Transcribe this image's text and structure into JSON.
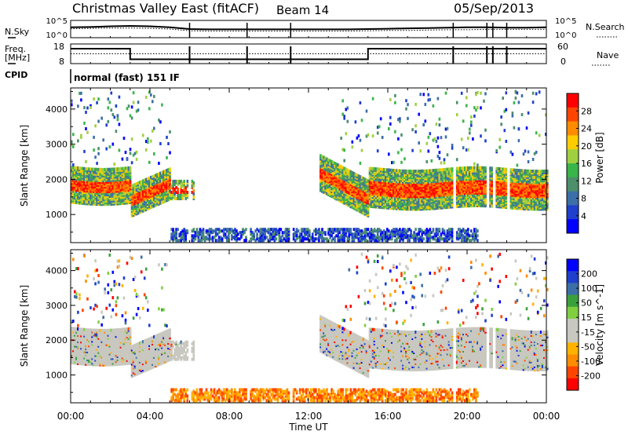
{
  "header": {
    "station": "Christmas Valley East (fitACF)",
    "beam": "Beam 14",
    "date": "05/Sep/2013"
  },
  "noise_panel": {
    "left_label": "N.Sky",
    "left_ticks": [
      "10^5",
      "10^0"
    ],
    "right_ticks": [
      "10^5",
      "10^0"
    ],
    "right_label": "N.Search"
  },
  "freq_panel": {
    "left_label_line1": "Freq.",
    "left_label_line2": "[MHz]",
    "left_ticks": [
      "18",
      "8"
    ],
    "right_ticks": [
      "60",
      "0"
    ],
    "right_label": "Nave"
  },
  "cpid": {
    "label": "CPID",
    "mode": "normal (fast) 151 IF"
  },
  "colors": {
    "power_scale": [
      "#0000ff",
      "#1f3fcc",
      "#3c6fa8",
      "#4c8f6a",
      "#39b54a",
      "#a0d040",
      "#ffcc00",
      "#ff8c00",
      "#ff4400",
      "#ff0000"
    ],
    "velocity_scale": [
      "#ff0000",
      "#ff4400",
      "#ff8c00",
      "#ffb300",
      "#c8c8c0",
      "#c8c8c0",
      "#7fcf3f",
      "#39a03c",
      "#3c6fa8",
      "#1f3fcc",
      "#0000ff"
    ]
  },
  "chart_data": [
    {
      "type": "line",
      "name": "noise",
      "x_range": [
        0,
        24
      ],
      "ylim_log10": [
        0,
        5
      ],
      "x_hours": [
        0,
        1,
        2,
        3,
        4,
        5,
        6,
        7,
        8,
        9,
        10,
        11,
        12,
        13,
        14,
        15,
        16,
        17,
        18,
        19,
        20,
        21,
        22,
        23,
        24
      ],
      "sky_log10": [
        3.0,
        3.1,
        3.3,
        3.4,
        3.3,
        3.0,
        2.5,
        2.4,
        2.4,
        2.4,
        2.4,
        2.4,
        2.4,
        2.4,
        2.4,
        2.5,
        2.6,
        2.7,
        2.8,
        2.9,
        3.0,
        3.0,
        2.9,
        2.9,
        3.0
      ],
      "search_log10": [
        2.6,
        2.7,
        2.8,
        2.8,
        2.7,
        2.5,
        2.0,
        1.9,
        1.9,
        1.9,
        1.9,
        1.9,
        1.9,
        1.9,
        1.9,
        2.0,
        2.1,
        2.1,
        2.2,
        2.3,
        2.3,
        2.4,
        2.4,
        2.4,
        2.4
      ]
    },
    {
      "type": "line",
      "name": "frequency",
      "x_range": [
        0,
        24
      ],
      "ylim": [
        8,
        18
      ],
      "ylim_right": [
        0,
        60
      ],
      "freq_steps": [
        [
          0,
          3,
          15.6
        ],
        [
          3,
          15,
          10.2
        ],
        [
          15,
          24,
          15.6
        ]
      ],
      "nave_value": 30,
      "gap_hours": [
        6.0,
        8.9,
        11.1,
        19.3,
        21.0,
        21.3,
        22.0
      ]
    },
    {
      "type": "heatmap",
      "name": "power",
      "xlabel": "",
      "ylabel": "Slant Range [km]",
      "x_range": [
        0,
        24
      ],
      "xticks": [
        "00:00",
        "04:00",
        "08:00",
        "12:00",
        "16:00",
        "20:00",
        "00:00"
      ],
      "ylim": [
        200,
        4600
      ],
      "yticks": [
        1000,
        2000,
        3000,
        4000
      ],
      "colorbar_label": "Power [dB]",
      "colorbar_ticks": [
        "4",
        "8",
        "12",
        "16",
        "20",
        "24",
        "28"
      ],
      "colorbar_range": [
        0,
        30
      ]
    },
    {
      "type": "heatmap",
      "name": "velocity",
      "xlabel": "Time UT",
      "ylabel": "Slant Range [km]",
      "x_range": [
        0,
        24
      ],
      "xticks": [
        "00:00",
        "04:00",
        "08:00",
        "12:00",
        "16:00",
        "20:00",
        "00:00"
      ],
      "ylim": [
        200,
        4600
      ],
      "yticks": [
        1000,
        2000,
        3000,
        4000
      ],
      "colorbar_label": "Velocity [m s^-1]",
      "colorbar_ticks": [
        "200",
        "100",
        "50",
        "15",
        "-15",
        "-50",
        "-100",
        "-200"
      ],
      "colorbar_range": [
        -250,
        250
      ]
    }
  ]
}
